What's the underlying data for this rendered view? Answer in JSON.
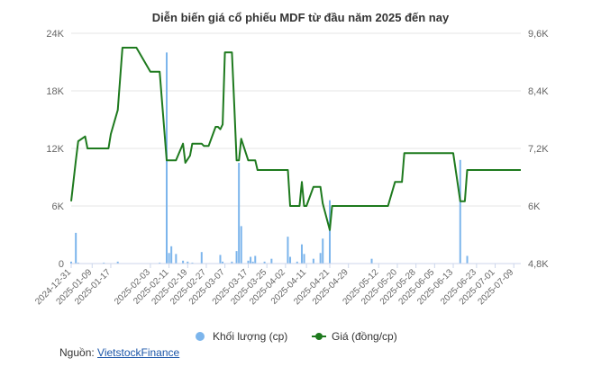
{
  "chart_data": {
    "type": "bar+line",
    "title": "Diễn biến giá cổ phiếu MDF từ đầu năm 2025 đến nay",
    "left_axis": {
      "ticks": [
        "0",
        "6K",
        "12K",
        "18K",
        "24K"
      ],
      "range": [
        0,
        24000
      ]
    },
    "right_axis": {
      "ticks": [
        "4,8K",
        "6K",
        "7,2K",
        "8,4K",
        "9,6K"
      ],
      "range": [
        4800,
        9600
      ]
    },
    "x_ticks": [
      "2024-12-31",
      "2025-01-09",
      "2025-01-17",
      "2025-02-03",
      "2025-02-11",
      "2025-02-19",
      "2025-02-27",
      "2025-03-07",
      "2025-03-17",
      "2025-03-25",
      "2025-04-02",
      "2025-04-11",
      "2025-04-21",
      "2025-04-29",
      "2025-05-12",
      "2025-05-20",
      "2025-05-28",
      "2025-06-05",
      "2025-06-13",
      "2025-06-23",
      "2025-07-01",
      "2025-07-09"
    ],
    "x_range": [
      "2024-12-31",
      "2025-07-12"
    ],
    "legend": [
      "Khối lượng (cp)",
      "Giá (đồng/cp)"
    ],
    "colors": {
      "volume": "#7cb5ec",
      "price": "#1e7a1e",
      "grid": "#e6e6e6"
    },
    "grid": true,
    "legend_position": "bottom-center",
    "volume": [
      [
        "2024-12-31",
        200
      ],
      [
        "2025-01-02",
        3200
      ],
      [
        "2025-01-03",
        100
      ],
      [
        "2025-01-06",
        0
      ],
      [
        "2025-01-14",
        100
      ],
      [
        "2025-01-20",
        200
      ],
      [
        "2025-02-04",
        0
      ],
      [
        "2025-02-07",
        100
      ],
      [
        "2025-02-10",
        22000
      ],
      [
        "2025-02-11",
        1100
      ],
      [
        "2025-02-12",
        1800
      ],
      [
        "2025-02-14",
        1000
      ],
      [
        "2025-02-17",
        300
      ],
      [
        "2025-02-19",
        200
      ],
      [
        "2025-02-21",
        100
      ],
      [
        "2025-02-25",
        1200
      ],
      [
        "2025-03-05",
        900
      ],
      [
        "2025-03-06",
        200
      ],
      [
        "2025-03-10",
        200
      ],
      [
        "2025-03-12",
        1300
      ],
      [
        "2025-03-13",
        10500
      ],
      [
        "2025-03-14",
        3900
      ],
      [
        "2025-03-17",
        300
      ],
      [
        "2025-03-18",
        700
      ],
      [
        "2025-03-19",
        200
      ],
      [
        "2025-03-20",
        800
      ],
      [
        "2025-03-24",
        200
      ],
      [
        "2025-03-27",
        500
      ],
      [
        "2025-04-03",
        2800
      ],
      [
        "2025-04-04",
        700
      ],
      [
        "2025-04-07",
        200
      ],
      [
        "2025-04-09",
        2000
      ],
      [
        "2025-04-10",
        1000
      ],
      [
        "2025-04-14",
        500
      ],
      [
        "2025-04-17",
        1100
      ],
      [
        "2025-04-18",
        2600
      ],
      [
        "2025-04-21",
        6600
      ],
      [
        "2025-05-09",
        500
      ],
      [
        "2025-06-16",
        10800
      ],
      [
        "2025-06-19",
        800
      ]
    ],
    "price": [
      [
        "2024-12-31",
        6100
      ],
      [
        "2025-01-02",
        6950
      ],
      [
        "2025-01-03",
        7350
      ],
      [
        "2025-01-06",
        7450
      ],
      [
        "2025-01-07",
        7200
      ],
      [
        "2025-01-16",
        7200
      ],
      [
        "2025-01-17",
        7500
      ],
      [
        "2025-01-20",
        8000
      ],
      [
        "2025-01-22",
        9300
      ],
      [
        "2025-01-28",
        9300
      ],
      [
        "2025-02-03",
        8800
      ],
      [
        "2025-02-07",
        8800
      ],
      [
        "2025-02-10",
        6950
      ],
      [
        "2025-02-14",
        6950
      ],
      [
        "2025-02-17",
        7300
      ],
      [
        "2025-02-18",
        6900
      ],
      [
        "2025-02-20",
        7050
      ],
      [
        "2025-02-21",
        7300
      ],
      [
        "2025-02-25",
        7300
      ],
      [
        "2025-02-26",
        7250
      ],
      [
        "2025-02-28",
        7250
      ],
      [
        "2025-03-03",
        7650
      ],
      [
        "2025-03-04",
        7650
      ],
      [
        "2025-03-05",
        7600
      ],
      [
        "2025-03-06",
        7700
      ],
      [
        "2025-03-07",
        9200
      ],
      [
        "2025-03-10",
        9200
      ],
      [
        "2025-03-11",
        8100
      ],
      [
        "2025-03-12",
        6950
      ],
      [
        "2025-03-13",
        6950
      ],
      [
        "2025-03-14",
        7400
      ],
      [
        "2025-03-17",
        6950
      ],
      [
        "2025-03-20",
        6950
      ],
      [
        "2025-03-21",
        6750
      ],
      [
        "2025-03-31",
        6750
      ],
      [
        "2025-04-03",
        6750
      ],
      [
        "2025-04-04",
        6000
      ],
      [
        "2025-04-08",
        6000
      ],
      [
        "2025-04-09",
        6500
      ],
      [
        "2025-04-10",
        6000
      ],
      [
        "2025-04-11",
        6000
      ],
      [
        "2025-04-14",
        6400
      ],
      [
        "2025-04-17",
        6400
      ],
      [
        "2025-04-18",
        6050
      ],
      [
        "2025-04-21",
        5500
      ],
      [
        "2025-04-22",
        6000
      ],
      [
        "2025-05-16",
        6000
      ],
      [
        "2025-05-19",
        6500
      ],
      [
        "2025-05-22",
        6500
      ],
      [
        "2025-05-23",
        7100
      ],
      [
        "2025-06-13",
        7100
      ],
      [
        "2025-06-16",
        6100
      ],
      [
        "2025-06-18",
        6100
      ],
      [
        "2025-06-19",
        6750
      ],
      [
        "2025-07-12",
        6750
      ]
    ]
  },
  "source": {
    "label": "Nguồn: ",
    "link_text": "VietstockFinance"
  }
}
